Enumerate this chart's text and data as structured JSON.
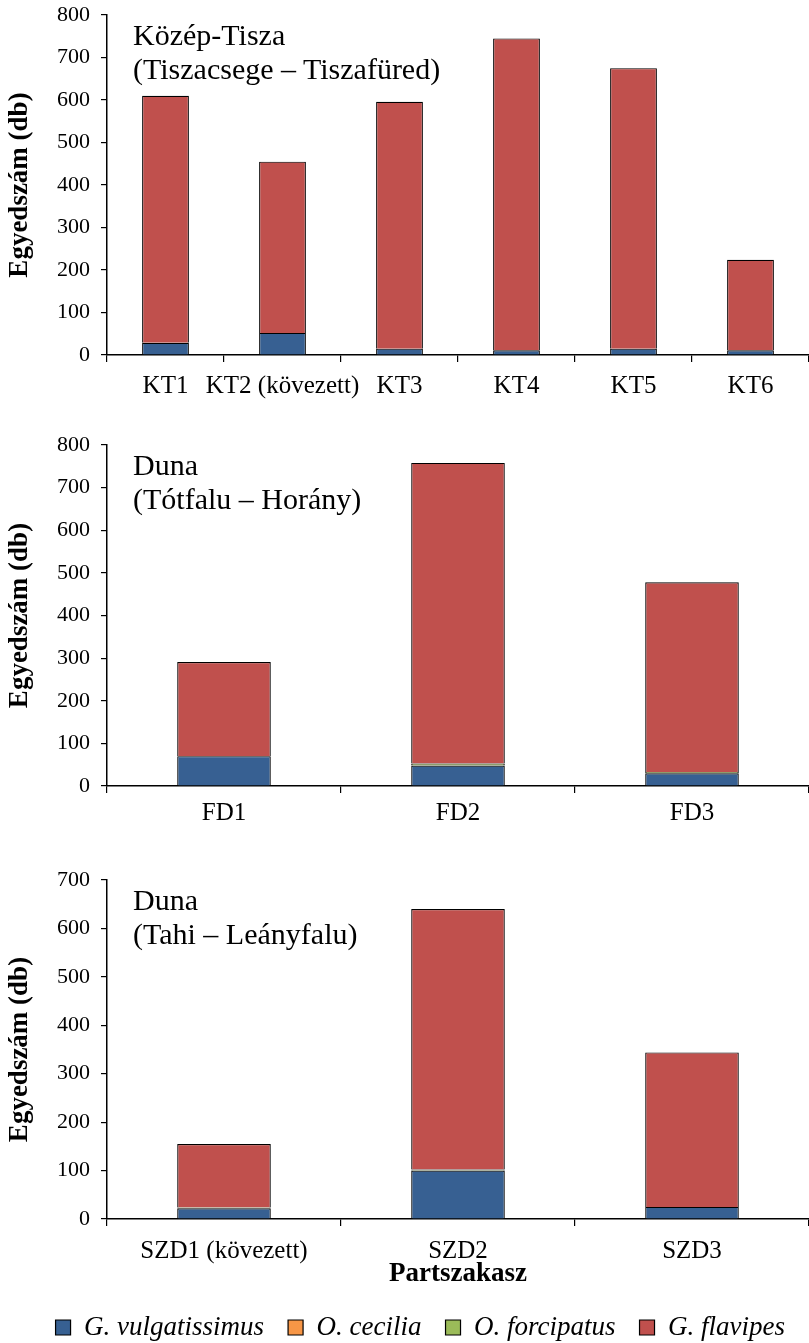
{
  "chart_data": [
    {
      "type": "bar",
      "title": "Közép-Tisza",
      "subtitle": "(Tiszacsege – Tiszafüred)",
      "ylabel": "Egyedszám (db)",
      "categories": [
        "KT1",
        "KT2 (kövezett)",
        "KT3",
        "KT4",
        "KT5",
        "KT6"
      ],
      "stacked": true,
      "ylim": [
        0,
        800
      ],
      "yticks": [
        0,
        100,
        200,
        300,
        400,
        500,
        600,
        700,
        800
      ],
      "series": [
        {
          "color": "#376092",
          "values": [
            29,
            52,
            15,
            11,
            15,
            11
          ]
        },
        {
          "color": "#f79646",
          "values": [
            0,
            0,
            0,
            0,
            0,
            0
          ]
        },
        {
          "color": "#9bbb59",
          "values": [
            0,
            0,
            0,
            0,
            0,
            0
          ]
        },
        {
          "color": "#c0504d",
          "values": [
            581,
            403,
            581,
            734,
            660,
            213
          ]
        }
      ]
    },
    {
      "type": "bar",
      "title": "Duna",
      "subtitle": "(Tótfalu – Horány)",
      "ylabel": "Egyedszám (db)",
      "categories": [
        "FD1",
        "FD2",
        "FD3"
      ],
      "stacked": true,
      "ylim": [
        0,
        800
      ],
      "yticks": [
        0,
        100,
        200,
        300,
        400,
        500,
        600,
        700,
        800
      ],
      "series": [
        {
          "color": "#376092",
          "values": [
            70,
            48,
            30
          ]
        },
        {
          "color": "#f79646",
          "values": [
            0,
            0,
            0
          ]
        },
        {
          "color": "#9bbb59",
          "values": [
            0,
            5,
            3
          ]
        },
        {
          "color": "#c0504d",
          "values": [
            221,
            705,
            445
          ]
        }
      ]
    },
    {
      "type": "bar",
      "title": "Duna",
      "subtitle": "(Tahi – Leányfalu)",
      "xlabel": "Partszakasz",
      "ylabel": "Egyedszám (db)",
      "categories": [
        "SZD1 (kövezett)",
        "SZD2",
        "SZD3"
      ],
      "stacked": true,
      "ylim": [
        0,
        700
      ],
      "yticks": [
        0,
        100,
        200,
        300,
        400,
        500,
        600,
        700
      ],
      "legend": "bottom",
      "series": [
        {
          "name": "G. vulgatissimus",
          "color": "#376092",
          "values": [
            22,
            100,
            25
          ]
        },
        {
          "name": "O. cecilia",
          "color": "#f79646",
          "values": [
            0,
            0,
            0
          ]
        },
        {
          "name": "O. forcipatus",
          "color": "#9bbb59",
          "values": [
            2,
            2,
            0
          ]
        },
        {
          "name": "G. flavipes",
          "color": "#c0504d",
          "values": [
            131,
            538,
            319
          ]
        }
      ]
    }
  ]
}
